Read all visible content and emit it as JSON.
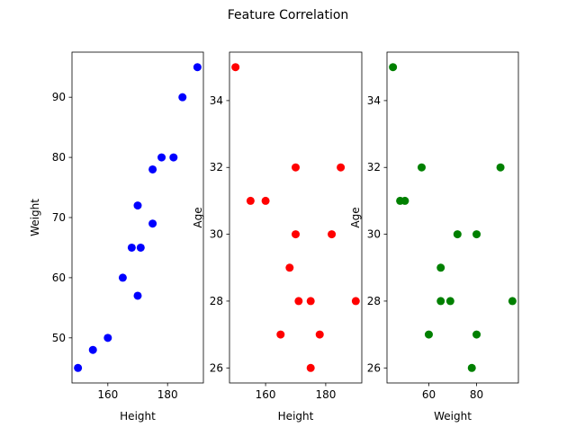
{
  "chart_data": {
    "title": "Feature Correlation",
    "subplots": [
      {
        "type": "scatter",
        "xlabel": "Height",
        "ylabel": "Weight",
        "color": "#0000ff",
        "xlim": [
          148,
          192
        ],
        "ylim": [
          42.5,
          97.5
        ],
        "xticks": [
          160,
          180
        ],
        "yticks": [
          50,
          60,
          70,
          80,
          90
        ],
        "x": [
          150,
          155,
          160,
          165,
          168,
          170,
          170,
          171,
          175,
          175,
          178,
          182,
          185,
          190
        ],
        "y": [
          45,
          48,
          50,
          60,
          65,
          57,
          72,
          65,
          69,
          78,
          80,
          80,
          90,
          95
        ]
      },
      {
        "type": "scatter",
        "xlabel": "Height",
        "ylabel": "Age",
        "color": "#ff0000",
        "xlim": [
          148,
          192
        ],
        "ylim": [
          25.55,
          35.45
        ],
        "xticks": [
          160,
          180
        ],
        "yticks": [
          26,
          28,
          30,
          32,
          34
        ],
        "x": [
          150,
          155,
          160,
          165,
          168,
          170,
          170,
          171,
          175,
          175,
          178,
          182,
          185,
          190
        ],
        "y": [
          35,
          31,
          31,
          27,
          29,
          32,
          30,
          28,
          28,
          26,
          27,
          30,
          32,
          28
        ]
      },
      {
        "type": "scatter",
        "xlabel": "Weight",
        "ylabel": "Age",
        "color": "#008000",
        "xlim": [
          42.5,
          97.5
        ],
        "ylim": [
          25.55,
          35.45
        ],
        "xticks": [
          60,
          80
        ],
        "yticks": [
          26,
          28,
          30,
          32,
          34
        ],
        "x": [
          45,
          48,
          50,
          57,
          60,
          65,
          65,
          69,
          72,
          78,
          80,
          80,
          90,
          95
        ],
        "y": [
          35,
          31,
          31,
          32,
          27,
          29,
          28,
          28,
          30,
          26,
          30,
          27,
          32,
          28
        ]
      }
    ]
  }
}
